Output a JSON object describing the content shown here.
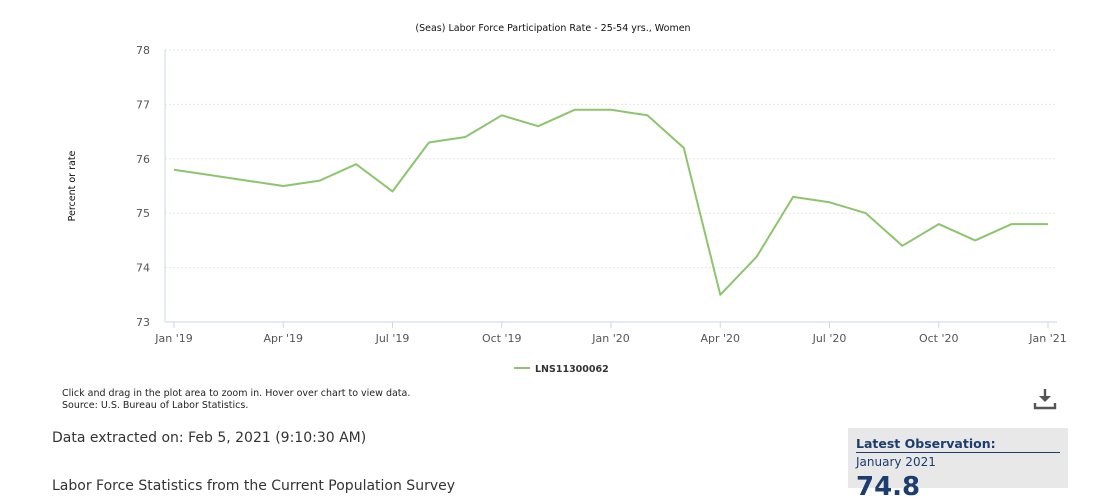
{
  "chart_data": {
    "type": "line",
    "title": "(Seas) Labor Force Participation Rate - 25-54 yrs., Women",
    "ylabel": "Percent or rate",
    "xlabel": "",
    "ylim": [
      73,
      78
    ],
    "yticks": [
      73,
      74,
      75,
      76,
      77,
      78
    ],
    "xticks": [
      {
        "label": "Jan '19",
        "index": 0
      },
      {
        "label": "Apr '19",
        "index": 3
      },
      {
        "label": "Jul '19",
        "index": 6
      },
      {
        "label": "Oct '19",
        "index": 9
      },
      {
        "label": "Jan '20",
        "index": 12
      },
      {
        "label": "Apr '20",
        "index": 15
      },
      {
        "label": "Jul '20",
        "index": 18
      },
      {
        "label": "Oct '20",
        "index": 21
      },
      {
        "label": "Jan '21",
        "index": 24
      }
    ],
    "x": [
      "2019-01",
      "2019-02",
      "2019-03",
      "2019-04",
      "2019-05",
      "2019-06",
      "2019-07",
      "2019-08",
      "2019-09",
      "2019-10",
      "2019-11",
      "2019-12",
      "2020-01",
      "2020-02",
      "2020-03",
      "2020-04",
      "2020-05",
      "2020-06",
      "2020-07",
      "2020-08",
      "2020-09",
      "2020-10",
      "2020-11",
      "2020-12",
      "2021-01"
    ],
    "series": [
      {
        "name": "LNS11300062",
        "color": "#8cc56e",
        "values": [
          75.8,
          75.7,
          75.6,
          75.5,
          75.6,
          75.9,
          75.4,
          76.3,
          76.4,
          76.8,
          76.6,
          76.9,
          76.9,
          76.8,
          76.2,
          73.5,
          74.2,
          75.3,
          75.2,
          75.0,
          74.4,
          74.8,
          74.5,
          74.8,
          74.8
        ]
      }
    ],
    "grid": true,
    "legend_position": "bottom-center"
  },
  "notes": {
    "line1": "Click and drag in the plot area to zoom in. Hover over chart to view data.",
    "line2": "Source: U.S. Bureau of Labor Statistics."
  },
  "extracted": "Data extracted on: Feb 5, 2021 (9:10:30 AM)",
  "download_icon": "download-icon",
  "latest": {
    "title": "Latest Observation:",
    "date": "January 2021",
    "value": "74.8"
  },
  "cutoff_heading": "Labor Force Statistics from the Current Population Survey"
}
